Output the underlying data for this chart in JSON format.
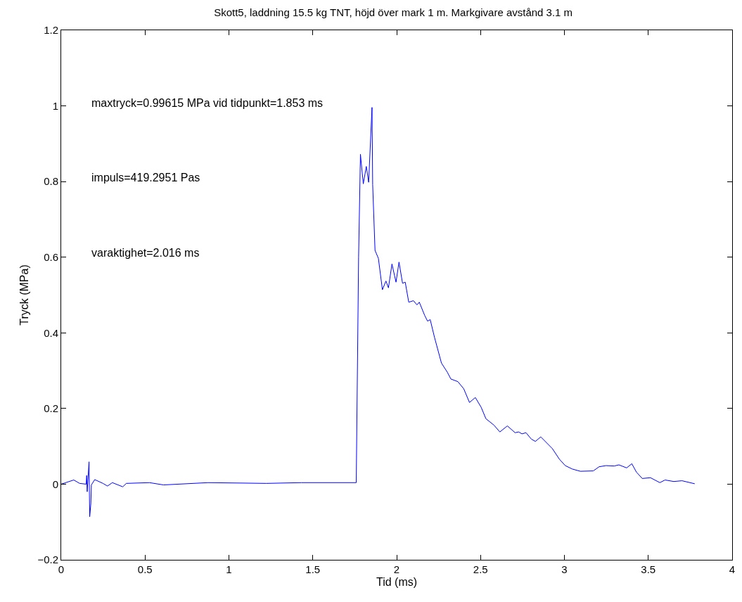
{
  "chart_data": {
    "type": "line",
    "title": "Skott5, laddning 15.5 kg TNT, höjd över mark 1 m. Markgivare avstånd 3.1 m",
    "xlabel": "Tid (ms)",
    "ylabel": "Tryck (MPa)",
    "annotations": [
      "maxtryck=0.99615 MPa vid tidpunkt=1.853 ms",
      "impuls=419.2951 Pas",
      "varaktighet=2.016 ms"
    ],
    "xlim": [
      0,
      4
    ],
    "xticks": [
      0,
      0.5,
      1,
      1.5,
      2,
      2.5,
      3,
      3.5,
      4
    ],
    "ylim": [
      -0.2,
      1.2
    ],
    "yticks": [
      {
        "value": -0.2,
        "label": "−0.2"
      },
      0,
      0.2,
      0.4,
      0.6,
      0.8,
      1,
      1.2
    ],
    "grid": false,
    "marker": "none",
    "line_style": "solid",
    "series": [
      {
        "color": "#0000ff",
        "x": [
          0,
          0.075,
          0.11,
          0.149,
          0.152,
          0.155,
          0.166,
          0.17,
          0.177,
          0.18,
          0.2,
          0.249,
          0.276,
          0.305,
          0.367,
          0.388,
          0.526,
          0.61,
          0.876,
          1.223,
          1.432,
          1.759,
          1.773,
          1.784,
          1.801,
          1.819,
          1.833,
          1.853,
          1.857,
          1.871,
          1.891,
          1.915,
          1.936,
          1.951,
          1.972,
          1.996,
          2.014,
          2.035,
          2.051,
          2.072,
          2.1,
          2.121,
          2.135,
          2.167,
          2.184,
          2.2,
          2.225,
          2.267,
          2.302,
          2.323,
          2.365,
          2.4,
          2.434,
          2.469,
          2.504,
          2.532,
          2.58,
          2.615,
          2.66,
          2.706,
          2.727,
          2.747,
          2.771,
          2.803,
          2.827,
          2.859,
          2.928,
          2.97,
          3.005,
          3.047,
          3.095,
          3.172,
          3.207,
          3.248,
          3.297,
          3.325,
          3.371,
          3.402,
          3.429,
          3.464,
          3.513,
          3.569,
          3.6,
          3.652,
          3.701,
          3.777
        ],
        "values": [
          0,
          0.011,
          0.002,
          0,
          0.023,
          -0.02,
          0.059,
          -0.086,
          -0.051,
          -0.002,
          0.012,
          0.002,
          -0.005,
          0.004,
          -0.007,
          0.002,
          0.004,
          -0.002,
          0.004,
          0.002,
          0.004,
          0.004,
          0.6,
          0.872,
          0.794,
          0.84,
          0.798,
          0.996,
          0.792,
          0.618,
          0.597,
          0.514,
          0.537,
          0.519,
          0.582,
          0.534,
          0.587,
          0.531,
          0.534,
          0.481,
          0.485,
          0.474,
          0.481,
          0.446,
          0.431,
          0.435,
          0.389,
          0.32,
          0.296,
          0.278,
          0.271,
          0.252,
          0.216,
          0.229,
          0.203,
          0.173,
          0.156,
          0.138,
          0.154,
          0.136,
          0.138,
          0.133,
          0.136,
          0.119,
          0.113,
          0.125,
          0.094,
          0.066,
          0.049,
          0.04,
          0.034,
          0.035,
          0.046,
          0.049,
          0.048,
          0.051,
          0.043,
          0.054,
          0.032,
          0.015,
          0.017,
          0.004,
          0.011,
          0.007,
          0.009,
          0.001
        ]
      }
    ]
  }
}
